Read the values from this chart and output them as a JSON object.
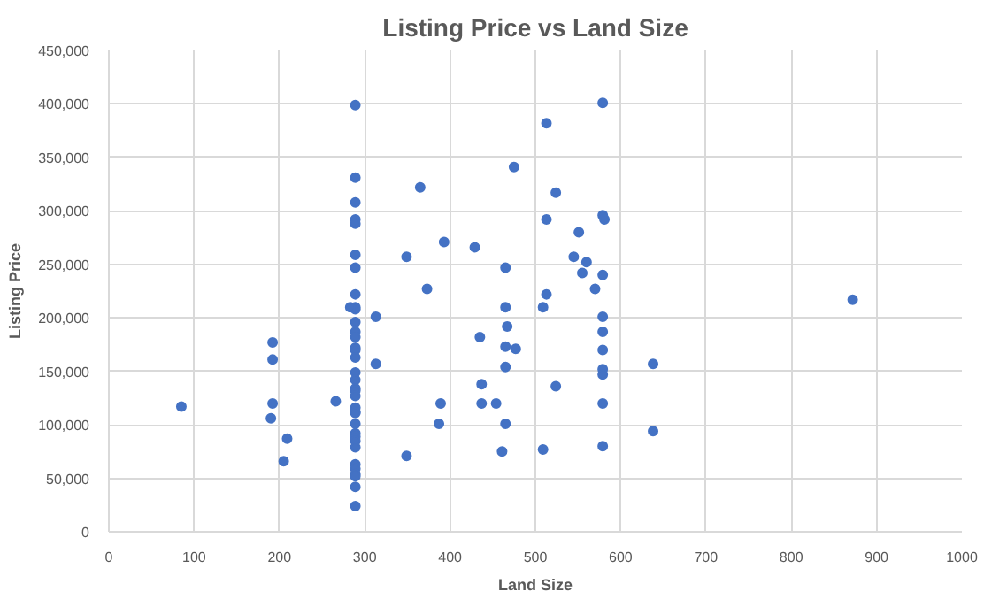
{
  "chart_data": {
    "type": "scatter",
    "title": "Listing Price vs Land Size",
    "xlabel": "Land Size",
    "ylabel": "Listing Price",
    "series": [
      {
        "color": "#4472c4",
        "x": [
          85,
          192,
          192,
          192,
          190,
          209,
          205,
          266,
          289,
          289,
          289,
          289,
          289,
          289,
          289,
          289,
          289,
          289,
          289,
          289,
          289,
          289,
          289,
          289,
          289,
          289,
          289,
          289,
          289,
          289,
          289,
          289,
          289,
          289,
          289,
          289,
          289,
          289,
          289,
          289,
          289,
          289,
          289,
          283,
          313,
          313,
          349,
          365,
          349,
          393,
          373,
          429,
          389,
          387,
          435,
          437,
          437,
          454,
          475,
          465,
          465,
          467,
          465,
          477,
          465,
          465,
          461,
          509,
          513,
          513,
          513,
          509,
          524,
          524,
          579,
          579,
          581,
          551,
          545,
          560,
          555,
          579,
          570,
          579,
          579,
          579,
          579,
          579,
          579,
          579,
          638,
          638,
          872
        ],
        "values": [
          117000,
          177000,
          161000,
          120000,
          106000,
          87000,
          66000,
          122000,
          399000,
          331000,
          308000,
          292000,
          288000,
          259000,
          247000,
          222000,
          210000,
          208000,
          196000,
          187000,
          182000,
          172000,
          170000,
          163000,
          149000,
          142000,
          134000,
          132000,
          127000,
          116000,
          112000,
          111000,
          101000,
          92000,
          89000,
          85000,
          79000,
          63000,
          59000,
          54000,
          52000,
          42000,
          24000,
          210000,
          201000,
          157000,
          257000,
          322000,
          71000,
          271000,
          227000,
          266000,
          120000,
          101000,
          182000,
          138000,
          120000,
          120000,
          341000,
          247000,
          210000,
          192000,
          173000,
          171000,
          154000,
          101000,
          75000,
          210000,
          222000,
          292000,
          382000,
          77000,
          317000,
          136000,
          401000,
          296000,
          292000,
          280000,
          257000,
          252000,
          242000,
          240000,
          227000,
          201000,
          187000,
          170000,
          152000,
          147000,
          120000,
          80000,
          157000,
          94000,
          217000
        ]
      }
    ],
    "xlim": [
      0,
      1000
    ],
    "xticks": [
      0,
      100,
      200,
      300,
      400,
      500,
      600,
      700,
      800,
      900,
      1000
    ],
    "ylim": [
      0,
      450000
    ],
    "yticks": [
      {
        "value": 0,
        "label": "0"
      },
      {
        "value": 50000,
        "label": "50,000"
      },
      {
        "value": 100000,
        "label": "100,000"
      },
      {
        "value": 150000,
        "label": "150,000"
      },
      {
        "value": 200000,
        "label": "200,000"
      },
      {
        "value": 250000,
        "label": "250,000"
      },
      {
        "value": 300000,
        "label": "300,000"
      },
      {
        "value": 350000,
        "label": "350,000"
      },
      {
        "value": 400000,
        "label": "400,000"
      },
      {
        "value": 450000,
        "label": "450,000"
      }
    ],
    "grid": true,
    "marker": "circle"
  }
}
